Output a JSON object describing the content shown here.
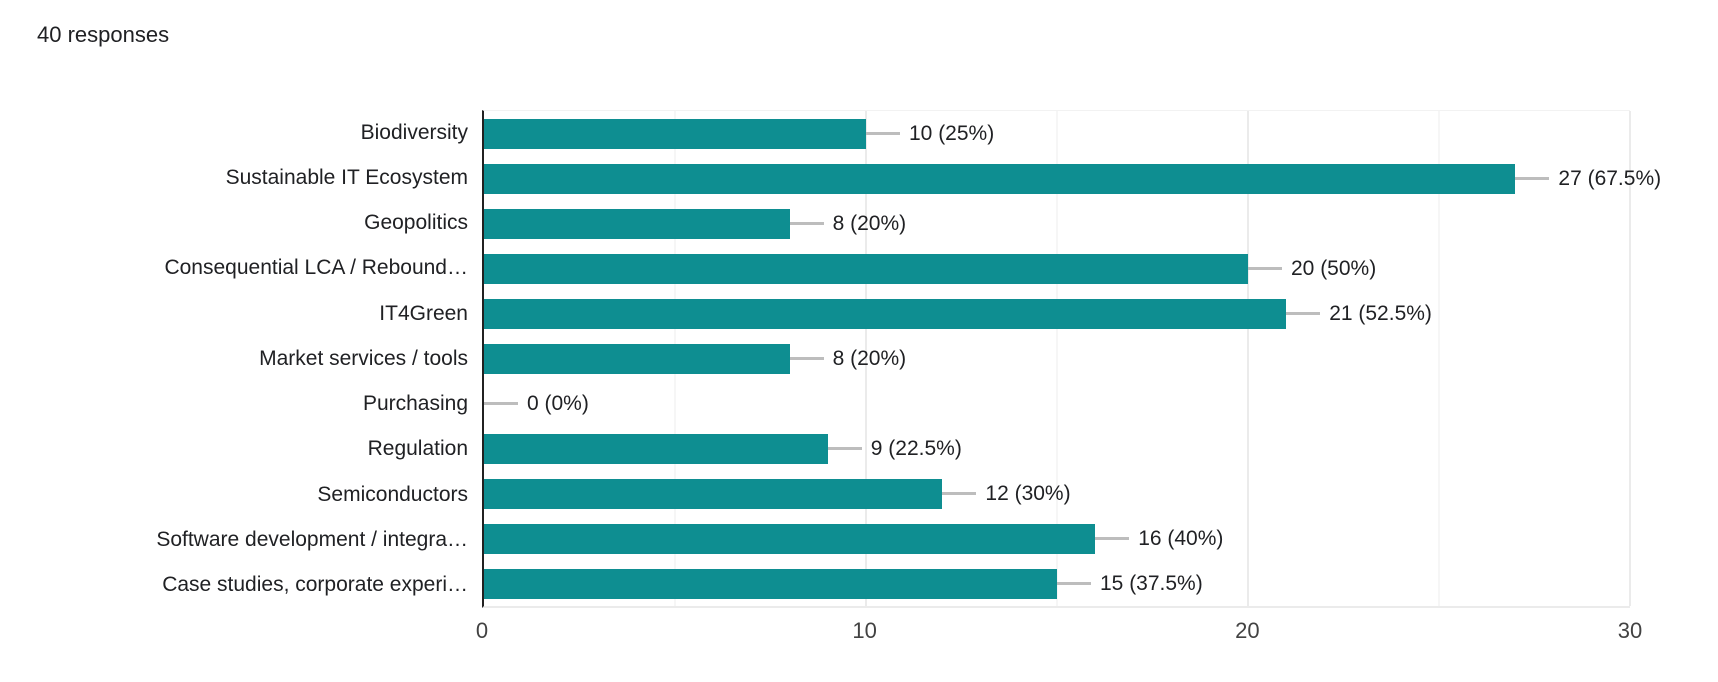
{
  "header": {
    "responses_text": "40 responses"
  },
  "chart_data": {
    "type": "bar",
    "orientation": "horizontal",
    "title": "",
    "xlabel": "",
    "ylabel": "",
    "legend": "none",
    "grid": "on",
    "xlim": [
      0,
      30
    ],
    "x_ticks": [
      0,
      10,
      20,
      30
    ],
    "minor_gridlines": [
      5,
      15,
      25
    ],
    "total_responses": 40,
    "categories": [
      "Biodiversity",
      "Sustainable IT Ecosystem",
      "Geopolitics",
      "Consequential LCA / Rebound…",
      "IT4Green",
      "Market services / tools",
      "Purchasing",
      "Regulation",
      "Semiconductors",
      "Software development / integra…",
      "Case studies, corporate experi…"
    ],
    "values": [
      10,
      27,
      8,
      20,
      21,
      8,
      0,
      9,
      12,
      16,
      15
    ],
    "percentages": [
      25,
      67.5,
      20,
      50,
      52.5,
      20,
      0,
      22.5,
      30,
      40,
      37.5
    ],
    "value_labels": [
      "10 (25%)",
      "27 (67.5%)",
      "8 (20%)",
      "20 (50%)",
      "21 (52.5%)",
      "8 (20%)",
      "0 (0%)",
      "9 (22.5%)",
      "12 (30%)",
      "16 (40%)",
      "15 (37.5%)"
    ],
    "colors": {
      "bar": "#0e8e91",
      "callout_line": "#bdbdbd",
      "axis_line": "#212121",
      "grid_major": "#ebebeb",
      "grid_minor": "#f6f6f6",
      "label_text": "#202124",
      "tick_text": "#424242"
    }
  }
}
